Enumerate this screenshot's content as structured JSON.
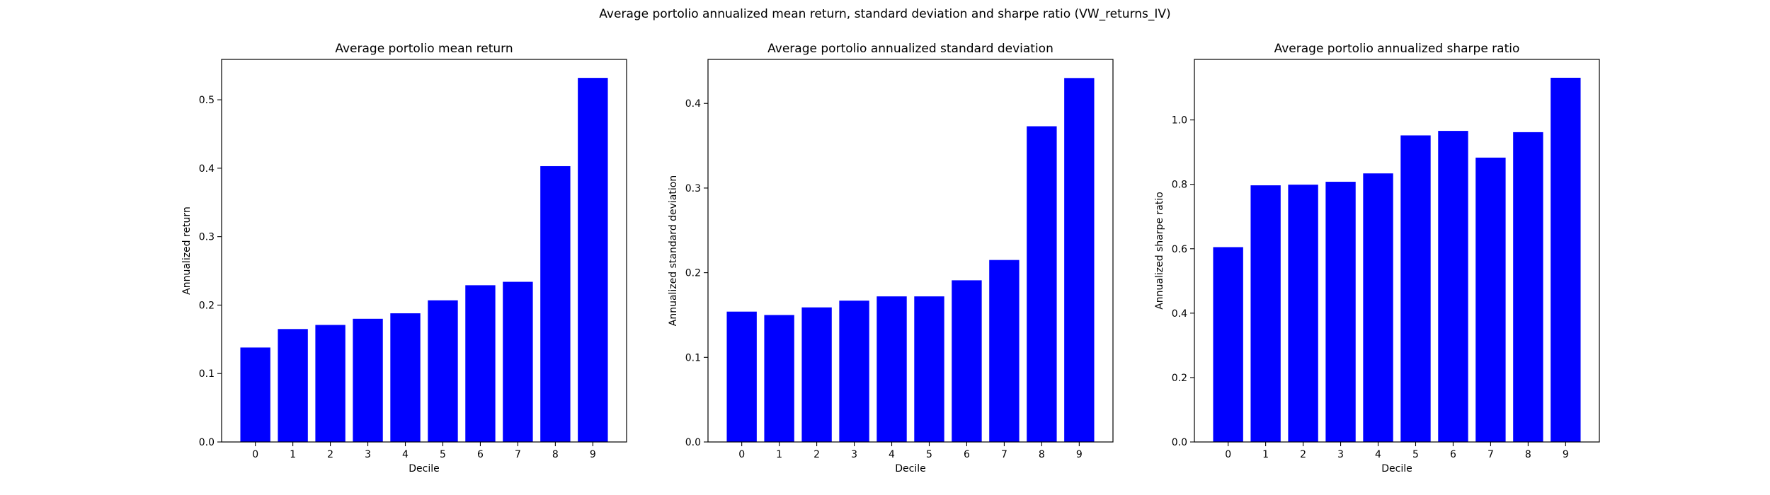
{
  "figure": {
    "title": "Average portolio annualized mean return, standard deviation and sharpe ratio (VW_returns_IV)"
  },
  "colors": {
    "bar": "#0000ff",
    "axis": "#000000",
    "background": "#ffffff"
  },
  "chart_data": [
    {
      "type": "bar",
      "title": "Average portolio mean return",
      "xlabel": "Decile",
      "ylabel": "Annualized return",
      "categories": [
        "0",
        "1",
        "2",
        "3",
        "4",
        "5",
        "6",
        "7",
        "8",
        "9"
      ],
      "values": [
        0.138,
        0.165,
        0.171,
        0.18,
        0.188,
        0.207,
        0.229,
        0.234,
        0.403,
        0.532
      ],
      "ylim": [
        0,
        0.559
      ],
      "yticks": [
        0.0,
        0.1,
        0.2,
        0.3,
        0.4,
        0.5
      ],
      "ytick_labels": [
        "0.0",
        "0.1",
        "0.2",
        "0.3",
        "0.4",
        "0.5"
      ],
      "grid": false
    },
    {
      "type": "bar",
      "title": "Average portolio annualized standard deviation",
      "xlabel": "Decile",
      "ylabel": "Annualized standard deviation",
      "categories": [
        "0",
        "1",
        "2",
        "3",
        "4",
        "5",
        "6",
        "7",
        "8",
        "9"
      ],
      "values": [
        0.154,
        0.15,
        0.159,
        0.167,
        0.172,
        0.172,
        0.191,
        0.215,
        0.373,
        0.43
      ],
      "ylim": [
        0,
        0.452
      ],
      "yticks": [
        0.0,
        0.1,
        0.2,
        0.3,
        0.4
      ],
      "ytick_labels": [
        "0.0",
        "0.1",
        "0.2",
        "0.3",
        "0.4"
      ],
      "grid": false
    },
    {
      "type": "bar",
      "title": "Average portolio annualized sharpe ratio",
      "xlabel": "Decile",
      "ylabel": "Annualized sharpe ratio",
      "categories": [
        "0",
        "1",
        "2",
        "3",
        "4",
        "5",
        "6",
        "7",
        "8",
        "9"
      ],
      "values": [
        0.605,
        0.797,
        0.799,
        0.808,
        0.834,
        0.952,
        0.966,
        0.883,
        0.962,
        1.131
      ],
      "ylim": [
        0,
        1.188
      ],
      "yticks": [
        0.0,
        0.2,
        0.4,
        0.6,
        0.8,
        1.0
      ],
      "ytick_labels": [
        "0.0",
        "0.2",
        "0.4",
        "0.6",
        "0.8",
        "1.0"
      ],
      "grid": false
    }
  ]
}
